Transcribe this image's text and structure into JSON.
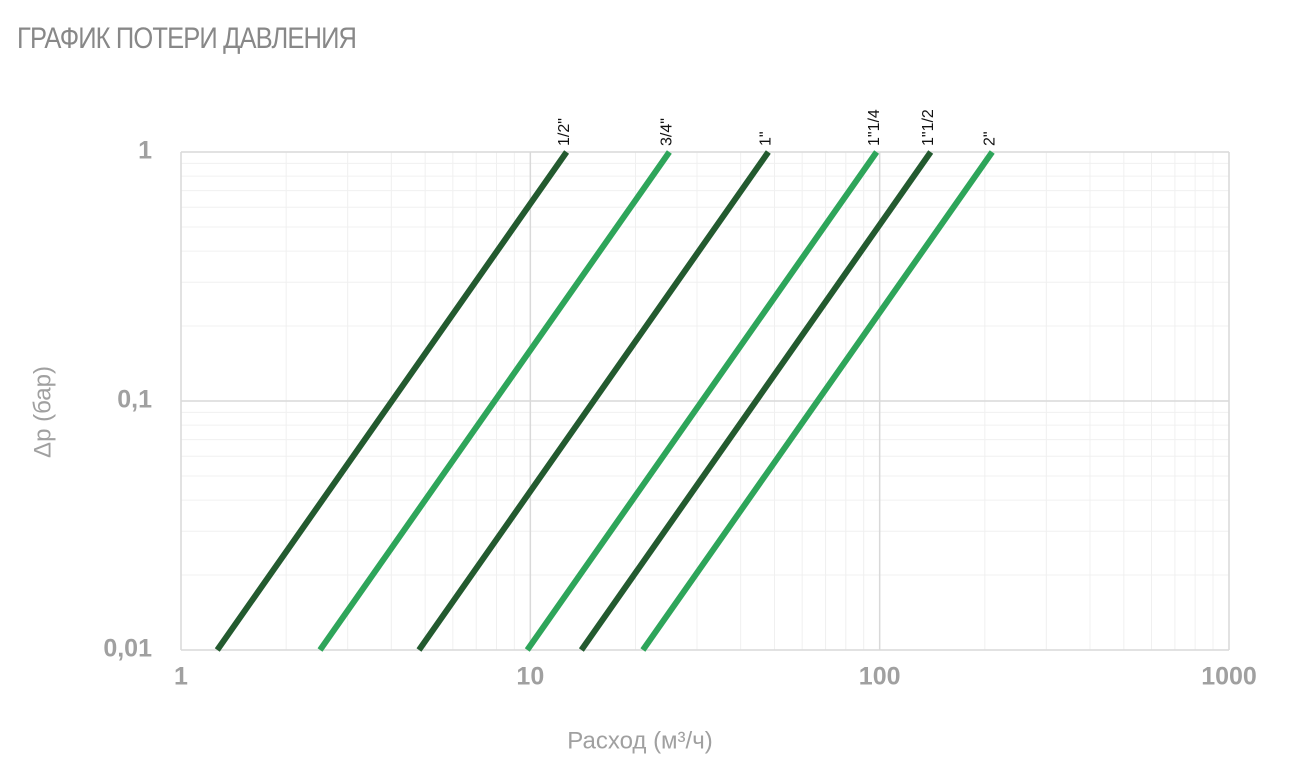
{
  "chart_data": {
    "type": "line",
    "title": "ГРАФИК ПОТЕРИ ДАВЛЕНИЯ",
    "x_label": "Расход (м³/ч)",
    "y_label": "Δp (бар)",
    "x_scale": "log",
    "y_scale": "log",
    "grid": true,
    "minor_grid": true,
    "xlim": [
      1,
      1000
    ],
    "ylim": [
      0.01,
      1
    ],
    "xticks": [
      1,
      10,
      100,
      1000
    ],
    "yticks": [
      {
        "value": 0.01,
        "label": "0,01"
      },
      {
        "value": 0.1,
        "label": "0,1"
      },
      1
    ],
    "series": [
      {
        "name": "1/2\"",
        "color": "#235a2f",
        "x": [
          1.27,
          12.7
        ],
        "values": [
          0.01,
          1
        ]
      },
      {
        "name": "3/4\"",
        "color": "#2ea55a",
        "x": [
          2.5,
          25
        ],
        "values": [
          0.01,
          1
        ]
      },
      {
        "name": "1\"",
        "color": "#235a2f",
        "x": [
          4.8,
          48
        ],
        "values": [
          0.01,
          1
        ]
      },
      {
        "name": "1\"1/4",
        "color": "#2ea55a",
        "x": [
          9.8,
          98
        ],
        "values": [
          0.01,
          1
        ]
      },
      {
        "name": "1\"1/2",
        "color": "#235a2f",
        "x": [
          14,
          140
        ],
        "values": [
          0.01,
          1
        ]
      },
      {
        "name": "2\"",
        "color": "#2ea55a",
        "x": [
          21,
          210
        ],
        "values": [
          0.01,
          1
        ]
      }
    ]
  }
}
